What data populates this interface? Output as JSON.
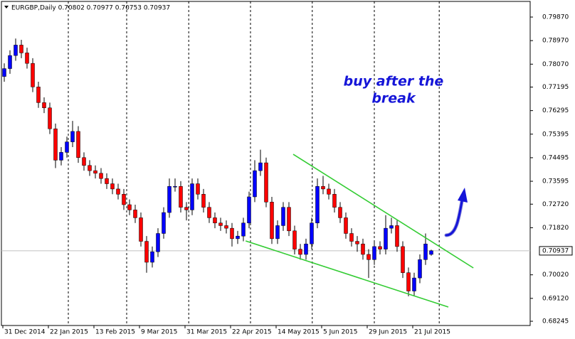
{
  "chart_data": {
    "type": "candlestick",
    "title": "EURGBP,Daily  0.70802 0.70977 0.70753 0.70937",
    "annotation": [
      "buy after the",
      "break"
    ],
    "up_color": "#0000ff",
    "down_color": "#ff0000",
    "trendline_color": "#33cc33",
    "x": [
      0,
      1,
      2,
      3,
      4,
      5,
      6,
      7,
      8,
      9,
      10,
      11,
      12,
      13,
      14,
      15,
      16,
      17,
      18,
      19,
      20,
      21,
      22,
      23,
      24,
      25,
      26,
      27,
      28,
      29,
      30,
      31,
      32,
      33,
      34,
      35,
      36,
      37,
      38,
      39,
      40,
      41,
      42,
      43,
      44,
      45,
      46,
      47,
      48,
      49,
      50,
      51,
      52,
      53,
      54,
      55,
      56,
      57,
      58,
      59,
      60,
      61,
      62,
      63,
      64,
      65,
      66,
      67,
      68,
      69,
      70,
      71,
      72,
      73,
      74,
      75
    ],
    "open": [
      0.776,
      0.779,
      0.784,
      0.788,
      0.785,
      0.781,
      0.772,
      0.766,
      0.764,
      0.756,
      0.744,
      0.747,
      0.751,
      0.755,
      0.745,
      0.742,
      0.74,
      0.739,
      0.737,
      0.735,
      0.733,
      0.731,
      0.727,
      0.725,
      0.722,
      0.713,
      0.705,
      0.709,
      0.716,
      0.724,
      0.734,
      0.734,
      0.726,
      0.725,
      0.735,
      0.731,
      0.726,
      0.722,
      0.72,
      0.719,
      0.718,
      0.714,
      0.715,
      0.72,
      0.73,
      0.74,
      0.743,
      0.728,
      0.714,
      0.719,
      0.726,
      0.717,
      0.71,
      0.708,
      0.712,
      0.72,
      0.734,
      0.733,
      0.731,
      0.726,
      0.722,
      0.716,
      0.713,
      0.712,
      0.708,
      0.706,
      0.711,
      0.71,
      0.718,
      0.719,
      0.711,
      0.701,
      0.694,
      0.699,
      0.706,
      0.708
    ],
    "high": [
      0.781,
      0.786,
      0.7905,
      0.79,
      0.787,
      0.783,
      0.774,
      0.768,
      0.766,
      0.758,
      0.749,
      0.753,
      0.759,
      0.757,
      0.747,
      0.744,
      0.742,
      0.741,
      0.739,
      0.737,
      0.735,
      0.733,
      0.729,
      0.727,
      0.724,
      0.715,
      0.711,
      0.718,
      0.726,
      0.737,
      0.737,
      0.736,
      0.728,
      0.737,
      0.737,
      0.733,
      0.728,
      0.724,
      0.722,
      0.721,
      0.72,
      0.717,
      0.722,
      0.732,
      0.744,
      0.748,
      0.745,
      0.73,
      0.721,
      0.728,
      0.728,
      0.719,
      0.712,
      0.714,
      0.722,
      0.737,
      0.738,
      0.735,
      0.733,
      0.728,
      0.724,
      0.718,
      0.715,
      0.714,
      0.71,
      0.713,
      0.713,
      0.723,
      0.722,
      0.721,
      0.713,
      0.703,
      0.701,
      0.708,
      0.716,
      0.7098
    ],
    "low": [
      0.774,
      0.777,
      0.782,
      0.783,
      0.779,
      0.77,
      0.764,
      0.762,
      0.754,
      0.741,
      0.742,
      0.745,
      0.749,
      0.743,
      0.74,
      0.738,
      0.737,
      0.735,
      0.733,
      0.731,
      0.729,
      0.725,
      0.723,
      0.72,
      0.711,
      0.701,
      0.703,
      0.707,
      0.714,
      0.722,
      0.732,
      0.724,
      0.721,
      0.723,
      0.729,
      0.724,
      0.72,
      0.718,
      0.717,
      0.716,
      0.711,
      0.712,
      0.713,
      0.718,
      0.728,
      0.738,
      0.726,
      0.712,
      0.712,
      0.717,
      0.715,
      0.708,
      0.706,
      0.706,
      0.71,
      0.718,
      0.731,
      0.729,
      0.724,
      0.72,
      0.714,
      0.711,
      0.709,
      0.706,
      0.699,
      0.704,
      0.708,
      0.708,
      0.716,
      0.709,
      0.699,
      0.692,
      0.692,
      0.697,
      0.704,
      0.7075
    ],
    "close": [
      0.779,
      0.784,
      0.788,
      0.785,
      0.781,
      0.772,
      0.766,
      0.764,
      0.756,
      0.744,
      0.747,
      0.751,
      0.755,
      0.745,
      0.742,
      0.74,
      0.739,
      0.737,
      0.735,
      0.733,
      0.731,
      0.727,
      0.725,
      0.722,
      0.713,
      0.705,
      0.709,
      0.716,
      0.724,
      0.734,
      0.734,
      0.726,
      0.725,
      0.735,
      0.731,
      0.726,
      0.722,
      0.72,
      0.719,
      0.718,
      0.714,
      0.715,
      0.72,
      0.73,
      0.74,
      0.743,
      0.728,
      0.714,
      0.719,
      0.726,
      0.717,
      0.71,
      0.708,
      0.712,
      0.72,
      0.734,
      0.733,
      0.731,
      0.726,
      0.722,
      0.716,
      0.713,
      0.712,
      0.708,
      0.706,
      0.711,
      0.71,
      0.718,
      0.719,
      0.711,
      0.701,
      0.694,
      0.699,
      0.706,
      0.712,
      0.7094
    ],
    "xlim": [
      -0.75,
      92.375
    ],
    "ylim": [
      0.68083,
      0.80522
    ],
    "xticks": [
      {
        "value": 0,
        "label": "31 Dec 2014"
      },
      {
        "value": 8,
        "label": "22 Jan 2015"
      },
      {
        "value": 16,
        "label": "13 Feb 2015"
      },
      {
        "value": 24,
        "label": "9 Mar 2015"
      },
      {
        "value": 32,
        "label": "31 Mar 2015"
      },
      {
        "value": 40,
        "label": "22 Apr 2015"
      },
      {
        "value": 48,
        "label": "14 May 2015"
      },
      {
        "value": 56,
        "label": "5 Jun 2015"
      },
      {
        "value": 64,
        "label": "29 Jun 2015"
      },
      {
        "value": 72,
        "label": "21 Jul 2015"
      }
    ],
    "vlines": [
      11.25,
      21.5,
      32.4,
      43.25,
      54.1,
      65,
      76.4
    ],
    "yticks": [
      {
        "value": 0.7987,
        "label": "0.79870"
      },
      {
        "value": 0.7897,
        "label": "0.78970"
      },
      {
        "value": 0.7807,
        "label": "0.78070"
      },
      0.77195,
      0.76295,
      0.75395,
      0.74495,
      0.73595,
      {
        "value": 0.7272,
        "label": "0.72720"
      },
      {
        "value": 0.7182,
        "label": "0.71820"
      },
      {
        "value": 0.7002,
        "label": "0.70020"
      },
      {
        "value": 0.6912,
        "label": "0.69120"
      },
      0.68245
    ],
    "last_price": 0.70937,
    "trendlines": [
      {
        "x": [
          50.75,
          82.4
        ],
        "y": [
          0.74628,
          0.70283
        ]
      },
      {
        "x": [
          42.4,
          78
        ],
        "y": [
          0.71315,
          0.68789
        ]
      }
    ]
  }
}
